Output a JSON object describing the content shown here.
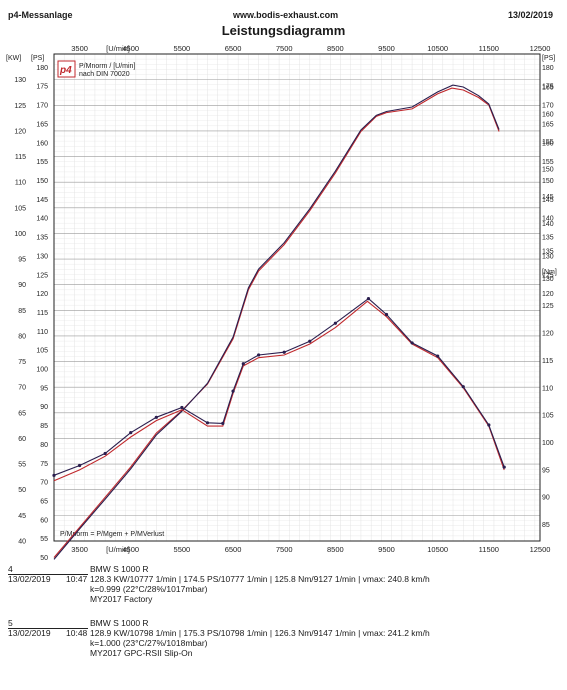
{
  "header": {
    "left": "p4-Messanlage",
    "center": "www.bodis-exhaust.com",
    "right": "13/02/2019",
    "title": "Leistungsdiagramm"
  },
  "logo": {
    "text": "p4",
    "caption_line1": "P/Mnorm / [U/min]",
    "caption_line2": "nach DIN 70020"
  },
  "formula": "P/Mnorm = P/Mgem + P/MVerlust",
  "chart_data": {
    "type": "line",
    "title": "Leistungsdiagramm",
    "x_unit": "[U/min]",
    "x_range": [
      3000,
      12500
    ],
    "x_ticks": [
      "3500",
      "4500",
      "5500",
      "6500",
      "7500",
      "8500",
      "9500",
      "10500",
      "11500",
      "12500"
    ],
    "x_ticks_values": [
      3500,
      4500,
      5500,
      6500,
      7500,
      8500,
      9500,
      10500,
      11500,
      12500
    ],
    "left_axis": {
      "unit_kw": "[KW]",
      "unit_ps": "[PS]",
      "kw_range": [
        40,
        135
      ],
      "kw_ticks": [
        40,
        45,
        50,
        55,
        60,
        65,
        70,
        75,
        80,
        85,
        90,
        95,
        100,
        105,
        110,
        115,
        120,
        125,
        130
      ],
      "ps_ticks": [
        40,
        45,
        50,
        55,
        60,
        65,
        70,
        75,
        80,
        85,
        90,
        95,
        100,
        105,
        110,
        115,
        120,
        125,
        130,
        135,
        140,
        145,
        150,
        155,
        160,
        165,
        170,
        175,
        180
      ]
    },
    "right_axis_power": {
      "unit": "[PS]",
      "ps_ticks": [
        120,
        125,
        130,
        135,
        140,
        145,
        150,
        155,
        160,
        165,
        170,
        175,
        180
      ]
    },
    "right_axis_torque": {
      "unit": "[Nm]",
      "range": [
        82,
        171
      ],
      "ticks": [
        85,
        90,
        95,
        100,
        105,
        110,
        115,
        120,
        125,
        130,
        135,
        140,
        145,
        150,
        155,
        160,
        165
      ]
    },
    "grid": true,
    "series": [
      {
        "name": "4",
        "kind": "power_ps",
        "color": "#c0282c",
        "x": [
          3000,
          3500,
          4000,
          4500,
          5000,
          5500,
          6000,
          6500,
          6800,
          7000,
          7500,
          8000,
          8500,
          9000,
          9300,
          9500,
          10000,
          10500,
          10777,
          11000,
          11300,
          11500,
          11700
        ],
        "y": [
          50,
          58,
          66,
          74,
          83,
          89,
          96,
          108,
          121,
          126,
          133,
          142,
          152,
          163,
          167,
          168,
          169,
          173,
          174.5,
          174,
          172,
          170,
          163
        ]
      },
      {
        "name": "5",
        "kind": "power_ps",
        "color": "#2a1e4e",
        "x": [
          3000,
          3500,
          4000,
          4500,
          5000,
          5500,
          6000,
          6500,
          6800,
          7000,
          7500,
          8000,
          8500,
          9000,
          9300,
          9500,
          10000,
          10500,
          10798,
          11000,
          11300,
          11500,
          11700
        ],
        "y": [
          49.5,
          57.6,
          65.5,
          73.5,
          82.5,
          88.8,
          96.2,
          108.5,
          121.5,
          126.5,
          133.5,
          142.5,
          152.5,
          163.4,
          167.3,
          168.3,
          169.5,
          173.5,
          175.3,
          174.8,
          172.5,
          170.3,
          163.5
        ]
      },
      {
        "name": "4",
        "kind": "torque_nm",
        "color": "#c0282c",
        "x": [
          3000,
          3500,
          4000,
          4500,
          5000,
          5500,
          6000,
          6300,
          6500,
          6700,
          7000,
          7500,
          8000,
          8500,
          9127,
          9500,
          10000,
          10500,
          11000,
          11500,
          11800
        ],
        "y": [
          93,
          95,
          97.5,
          101,
          104,
          106,
          103,
          103,
          109,
          114,
          115.5,
          116,
          118,
          121,
          125.8,
          123,
          118,
          115.5,
          110,
          103,
          95
        ]
      },
      {
        "name": "5",
        "kind": "torque_nm",
        "color": "#2a1e4e",
        "x": [
          3000,
          3500,
          4000,
          4500,
          5000,
          5500,
          6000,
          6300,
          6500,
          6700,
          7000,
          7500,
          8000,
          8500,
          9147,
          9500,
          10000,
          10500,
          11000,
          11500,
          11800
        ],
        "y": [
          94,
          95.8,
          98,
          101.8,
          104.6,
          106.4,
          103.6,
          103.5,
          109.4,
          114.4,
          116,
          116.5,
          118.5,
          121.8,
          126.3,
          123.4,
          118.2,
          115.8,
          110.2,
          103.2,
          95.5
        ]
      }
    ]
  },
  "runs": [
    {
      "id": "4",
      "vehicle": "BMW S 1000 R",
      "date": "13/02/2019",
      "time": "10:47",
      "results": "128.3 KW/10777 1/min  |  174.5 PS/10777 1/min  |  125.8 Nm/9127 1/min  |  vmax: 240.8 km/h",
      "conditions": "k=0.999 (22°C/28%/1017mbar)",
      "description": "MY2017 Factory"
    },
    {
      "id": "5",
      "vehicle": "BMW S 1000 R",
      "date": "13/02/2019",
      "time": "10:48",
      "results": "128.9 KW/10798 1/min  |  175.3 PS/10798 1/min  |  126.3 Nm/9147 1/min  |  vmax: 241.2 km/h",
      "conditions": "k=1.000 (23°C/27%/1018mbar)",
      "description": "MY2017 GPC-RSII Slip-On"
    }
  ]
}
